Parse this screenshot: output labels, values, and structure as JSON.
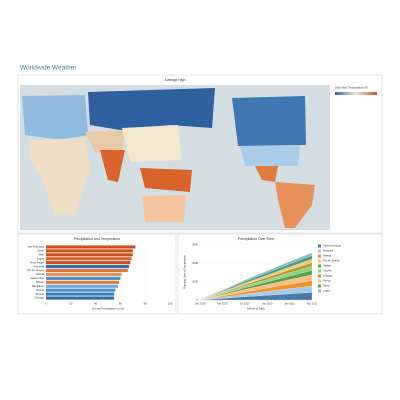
{
  "header": {
    "title": "Worldwide Weather"
  },
  "map": {
    "title": "Average High",
    "legend_title": "Daily Max Temperature (F)"
  },
  "chart_data": [
    {
      "type": "bar",
      "orientation": "horizontal",
      "title": "Precipitation and Temperature",
      "x_label": "Annual Precipitation (mm)",
      "categories": [
        "San Francisco",
        "Seoul",
        "Male",
        "Lagos",
        "Porto Alegre",
        "Montreal",
        "Rio de Janeiro",
        "Atlanta",
        "Hudson Bay",
        "Wuhan",
        "Bangalore",
        "Detroit",
        "Toronto",
        "Chicago"
      ],
      "values": [
        72,
        70,
        70,
        69,
        68,
        67,
        66,
        61,
        60,
        59,
        58,
        56,
        55,
        55
      ],
      "colors": [
        "#c8511d",
        "#c8511d",
        "#c8511d",
        "#d8642b",
        "#c8511d",
        "#2f6fa3",
        "#e07b3f",
        "#e8905a",
        "#4e8fc0",
        "#e07b3f",
        "#6aaad6",
        "#4e8fc0",
        "#3a7db5",
        "#2f6fa3"
      ],
      "xlim": [
        0,
        100
      ],
      "xticks": [
        0,
        20,
        40,
        60,
        80,
        100
      ]
    },
    {
      "type": "stacked_area",
      "title": "Precipitation Over Time",
      "y_label": "Running Sum of Precipitation",
      "x_label": "Month of Date",
      "categories": [
        "Jan 2010",
        "Apr 2010",
        "Jul 2010",
        "Oct 2010",
        "Jan 2011",
        "Apr 2011"
      ],
      "series": [
        {
          "name": "Santo Domingo",
          "color": "#4e79a7",
          "values": [
            10,
            90,
            180,
            260,
            340,
            420
          ]
        },
        {
          "name": "Montreal",
          "color": "#a0cbe8",
          "values": [
            10,
            70,
            140,
            210,
            280,
            340
          ]
        },
        {
          "name": "Atlanta",
          "color": "#f28e2b",
          "values": [
            10,
            60,
            120,
            180,
            240,
            300
          ]
        },
        {
          "name": "Rio de Janeiro",
          "color": "#ffbe7d",
          "values": [
            10,
            60,
            130,
            190,
            250,
            310
          ]
        },
        {
          "name": "Seattle",
          "color": "#59a14f",
          "values": [
            10,
            50,
            100,
            150,
            200,
            250
          ]
        },
        {
          "name": "Toronto",
          "color": "#8cd17d",
          "values": [
            5,
            40,
            90,
            130,
            180,
            220
          ]
        },
        {
          "name": "Chicago",
          "color": "#b6992d",
          "values": [
            5,
            40,
            80,
            120,
            160,
            200
          ]
        },
        {
          "name": "Detroit",
          "color": "#f1ce63",
          "values": [
            5,
            40,
            80,
            110,
            150,
            190
          ]
        },
        {
          "name": "Seoul",
          "color": "#499894",
          "values": [
            5,
            50,
            100,
            140,
            170,
            200
          ]
        },
        {
          "name": "Lagos",
          "color": "#86bcb6",
          "values": [
            5,
            30,
            70,
            100,
            130,
            150
          ]
        }
      ],
      "ylim": [
        0,
        3000
      ],
      "yticks": [
        0,
        1000,
        2000,
        3000
      ]
    }
  ]
}
